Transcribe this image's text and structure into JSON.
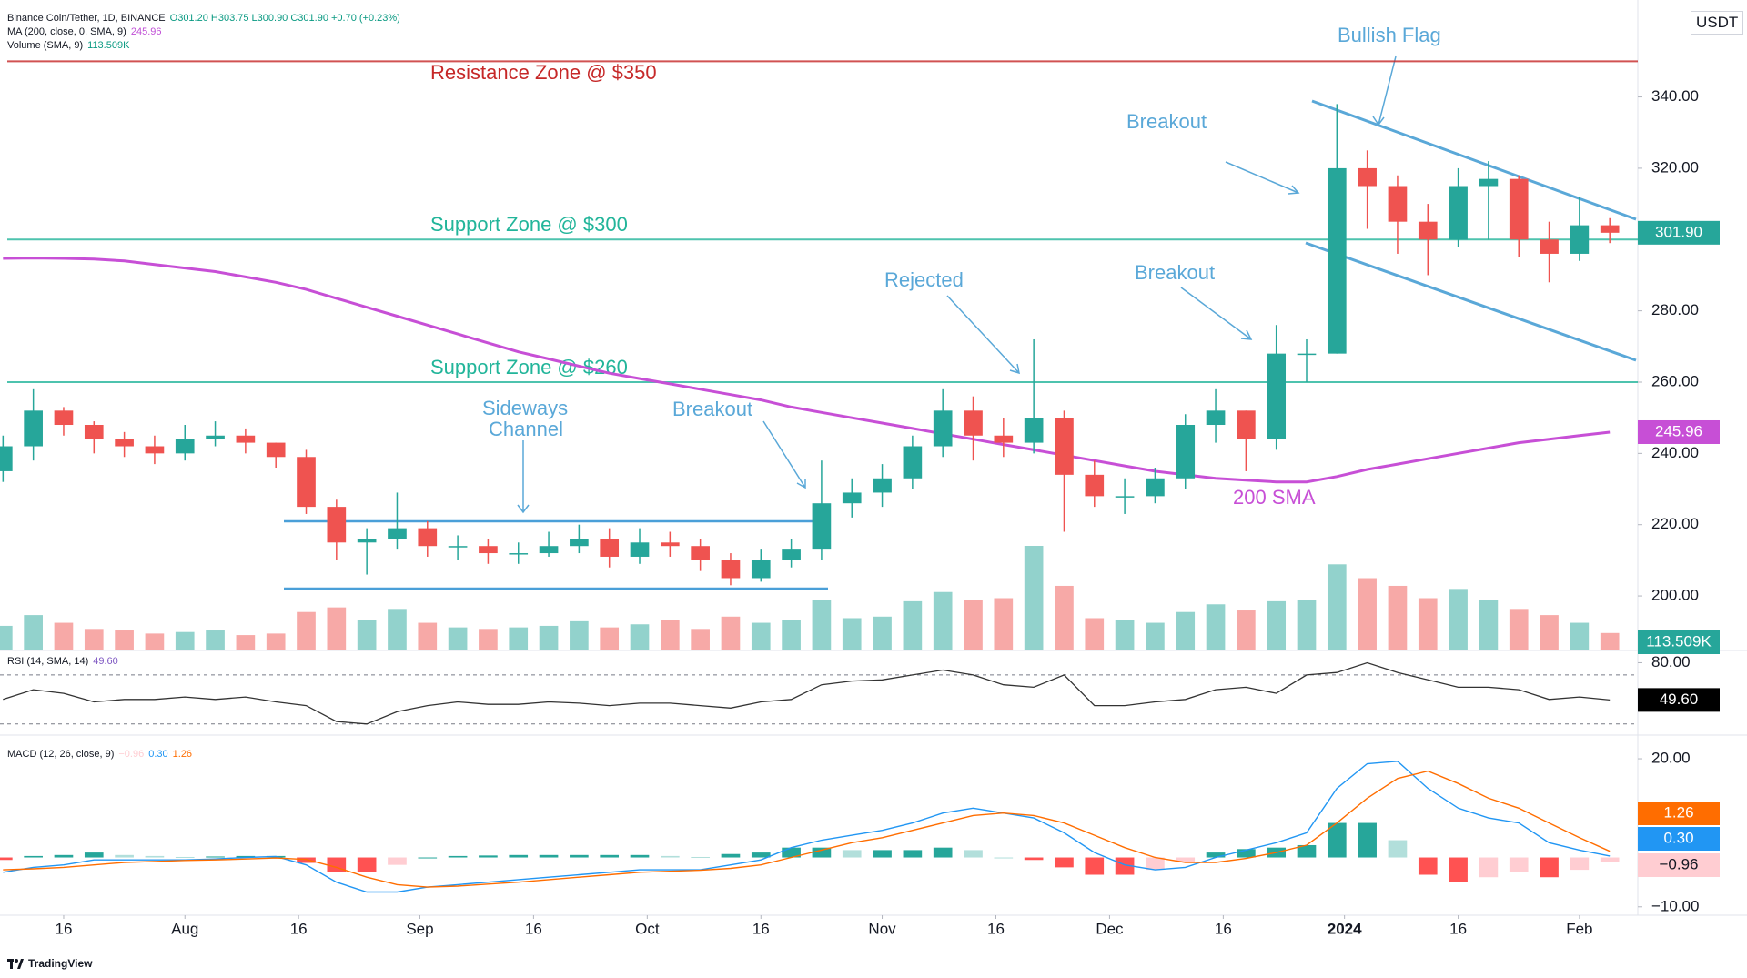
{
  "header": {
    "symbol_line": "Binance Coin/Tether, 1D, BINANCE",
    "ohlc": "O301.20 H303.75 L300.90 C301.90 +0.70 (+0.23%)",
    "ma_line": "MA (200, close, 0, SMA, 9)",
    "volume_line": "Volume (SMA, 9)",
    "currency": "USDT"
  },
  "chart_data": [
    {
      "type": "candlestick",
      "x": [
        0,
        4,
        8,
        12,
        16,
        20,
        24,
        28,
        32,
        36,
        40,
        44,
        48,
        52,
        56,
        60,
        64,
        68,
        72,
        76,
        80,
        84,
        88,
        92,
        96,
        100,
        104,
        108,
        112,
        116,
        120,
        124,
        128,
        132,
        136,
        140,
        144,
        148,
        152,
        156,
        160,
        164,
        168,
        172,
        176,
        180,
        184,
        188,
        192,
        196,
        200,
        204,
        208,
        212
      ],
      "open": [
        235,
        242,
        252,
        248,
        244,
        242,
        240,
        244,
        245,
        243,
        239,
        225,
        215,
        216,
        219,
        214,
        214,
        212,
        212,
        214,
        216,
        211,
        215,
        214,
        210,
        205,
        210,
        213,
        226,
        229,
        233,
        242,
        252,
        245,
        243,
        250,
        234,
        228,
        228,
        233,
        248,
        252,
        244,
        268,
        268,
        320,
        315,
        305,
        300,
        315,
        317,
        300,
        296,
        304
      ],
      "high": [
        245,
        258,
        253,
        249,
        246,
        245,
        248,
        249,
        247,
        243,
        241,
        227,
        219,
        229,
        221,
        217,
        216,
        215,
        218,
        220,
        219,
        219,
        218,
        216,
        212,
        213,
        216,
        238,
        233,
        237,
        245,
        258,
        256,
        250,
        272,
        252,
        238,
        233,
        236,
        251,
        258,
        252,
        276,
        272,
        338,
        325,
        318,
        310,
        320,
        322,
        318,
        305,
        312,
        306
      ],
      "low": [
        232,
        238,
        245,
        240,
        239,
        237,
        238,
        242,
        240,
        236,
        223,
        210,
        206,
        213,
        211,
        210,
        209,
        209,
        211,
        212,
        208,
        209,
        211,
        207,
        203,
        204,
        208,
        210,
        222,
        225,
        230,
        239,
        238,
        239,
        240,
        218,
        225,
        223,
        226,
        230,
        243,
        235,
        241,
        260,
        268,
        303,
        296,
        290,
        298,
        300,
        295,
        288,
        294,
        299
      ],
      "close": [
        242,
        252,
        248,
        244,
        242,
        240,
        244,
        245,
        243,
        239,
        225,
        215,
        216,
        219,
        214,
        214,
        212,
        212,
        214,
        216,
        211,
        215,
        214,
        210,
        205,
        210,
        213,
        226,
        229,
        233,
        242,
        252,
        245,
        243,
        250,
        234,
        228,
        228,
        233,
        248,
        252,
        244,
        268,
        268,
        320,
        315,
        305,
        300,
        315,
        317,
        300,
        296,
        304,
        301.9
      ],
      "close_tag": "301.90",
      "up_color": "#26a69a",
      "down_color": "#ef5350",
      "ma": {
        "values": [
          294.7,
          294.8,
          294.7,
          294.5,
          294,
          293,
          292,
          291,
          289.5,
          288,
          286,
          283.5,
          281,
          278.5,
          276,
          273.5,
          271,
          268.5,
          266.5,
          264.5,
          262.5,
          261,
          259.5,
          258,
          256.5,
          255,
          253,
          251.5,
          250,
          248.5,
          247,
          245.5,
          244,
          242.5,
          241,
          239.5,
          238,
          236.5,
          235,
          234,
          233,
          232.5,
          232,
          232,
          233.5,
          235.5,
          237,
          238.5,
          240,
          241.5,
          243,
          244,
          245,
          245.96
        ],
        "color": "#c74fd6",
        "tag": "245.96"
      },
      "volume": {
        "values": [
          160000,
          230000,
          180000,
          140000,
          130000,
          110000,
          120000,
          130000,
          100000,
          110000,
          250000,
          280000,
          200000,
          270000,
          180000,
          150000,
          140000,
          150000,
          160000,
          190000,
          150000,
          170000,
          200000,
          140000,
          220000,
          180000,
          200000,
          330000,
          210000,
          220000,
          320000,
          380000,
          330000,
          340000,
          680000,
          420000,
          210000,
          200000,
          180000,
          250000,
          300000,
          260000,
          320000,
          330000,
          560000,
          470000,
          420000,
          340000,
          400000,
          330000,
          270000,
          230000,
          180000,
          113509
        ],
        "tag": "113.509K"
      },
      "levels": [
        {
          "label": "Resistance Zone @ $350",
          "value": 350,
          "color": "#c62828"
        },
        {
          "label": "Support Zone @ $300",
          "value": 300,
          "color": "#22b59a"
        },
        {
          "label": "Support Zone @ $260",
          "value": 260,
          "color": "#22b59a"
        }
      ],
      "annotations": [
        "Bullish Flag",
        "Breakout",
        "Rejected",
        "Breakout",
        "Sideways",
        "Channel",
        "Breakout",
        "200 SMA"
      ],
      "xlim": [
        -0.4,
        215.7
      ],
      "xticks": [
        {
          "value": 8,
          "label": "16"
        },
        {
          "value": 24,
          "label": "Aug"
        },
        {
          "value": 39,
          "label": "16"
        },
        {
          "value": 55,
          "label": "Sep"
        },
        {
          "value": 70,
          "label": "16"
        },
        {
          "value": 85,
          "label": "Oct"
        },
        {
          "value": 100,
          "label": "16"
        },
        {
          "value": 116,
          "label": "Nov"
        },
        {
          "value": 131,
          "label": "16"
        },
        {
          "value": 146,
          "label": "Dec"
        },
        {
          "value": 161,
          "label": "16"
        },
        {
          "value": 177,
          "label": "2024"
        },
        {
          "value": 192,
          "label": "16"
        },
        {
          "value": 208,
          "label": "Feb"
        }
      ],
      "ylim": [
        184.7,
        367.2
      ],
      "yticks": [
        {
          "value": 200,
          "label": "200.00"
        },
        {
          "value": 220,
          "label": "220.00"
        },
        {
          "value": 240,
          "label": "240.00"
        },
        {
          "value": 260,
          "label": "260.00"
        },
        {
          "value": 280,
          "label": "280.00"
        },
        {
          "value": 300,
          "label": "300.00"
        },
        {
          "value": 320,
          "label": "320.00"
        },
        {
          "value": 340,
          "label": "340.00"
        }
      ]
    },
    {
      "type": "line",
      "title": "RSI (14, SMA, 14)",
      "series": [
        {
          "values": [
            50,
            58,
            55,
            48,
            50,
            50,
            52,
            50,
            52,
            48,
            45,
            32,
            30,
            40,
            45,
            48,
            46,
            46,
            48,
            47,
            45,
            47,
            47,
            45,
            43,
            48,
            50,
            62,
            65,
            66,
            70,
            74,
            70,
            62,
            60,
            70,
            45,
            45,
            48,
            50,
            58,
            60,
            55,
            70,
            72,
            80,
            72,
            66,
            60,
            60,
            58,
            50,
            52,
            49.6
          ],
          "color": "#333333",
          "tag": "49.60"
        }
      ],
      "bands": [
        70,
        30
      ],
      "ylim": [
        20.9,
        90
      ],
      "yticks": [
        {
          "value": 80,
          "label": "80.00"
        }
      ]
    },
    {
      "type": "macd",
      "title": "MACD (12, 26, close, 9)",
      "histogram": {
        "values": [
          -0.5,
          0.3,
          0.5,
          1,
          0.5,
          0.3,
          0.1,
          0.2,
          0.3,
          0.3,
          -1.1,
          -3,
          -3,
          -1.5,
          0,
          0.3,
          0.4,
          0.5,
          0.5,
          0.5,
          0.5,
          0.5,
          0.3,
          0.1,
          0.7,
          1,
          2,
          2,
          1.5,
          1.5,
          1.5,
          2,
          1.5,
          0,
          -0.5,
          -2,
          -3.5,
          -3.5,
          -2.5,
          -1,
          1,
          1.7,
          2,
          2.5,
          7,
          7,
          3.5,
          -3.5,
          -5,
          -4,
          -3,
          -4,
          -2.5,
          -0.96
        ],
        "tag": "−0.96"
      },
      "macd": {
        "values": [
          -3,
          -2,
          -1.5,
          -0.5,
          -0.5,
          -0.5,
          -0.5,
          -0.3,
          0,
          0.2,
          -1.5,
          -5,
          -7,
          -7,
          -6,
          -5.5,
          -5,
          -4.5,
          -4,
          -3.5,
          -3,
          -2.5,
          -2.5,
          -2.5,
          -1.5,
          -0.5,
          2,
          3.5,
          4.5,
          5.5,
          7,
          9,
          10,
          9,
          8,
          5,
          1,
          -1.5,
          -2.5,
          -2,
          0,
          1.5,
          3,
          5,
          14,
          19,
          19.5,
          14,
          10,
          8,
          7,
          3,
          1.5,
          0.3
        ],
        "color": "#2196f3",
        "tag": "0.30"
      },
      "signal": {
        "values": [
          -2.5,
          -2.3,
          -2,
          -1.5,
          -1,
          -0.8,
          -0.6,
          -0.5,
          -0.3,
          -0.1,
          -0.4,
          -2,
          -4,
          -5.5,
          -6,
          -5.8,
          -5.4,
          -5,
          -4.5,
          -4,
          -3.5,
          -3,
          -2.8,
          -2.6,
          -2.2,
          -1.5,
          0,
          1.5,
          3,
          4,
          5.5,
          7,
          8.5,
          9,
          8.5,
          7,
          4.5,
          2,
          0,
          -1,
          -1,
          -0.2,
          1,
          2.5,
          7,
          12,
          16,
          17.5,
          15,
          12,
          10,
          7,
          4,
          1.26
        ],
        "color": "#ff6d00",
        "tag": "1.26"
      },
      "ylim": [
        -11.7,
        24.8
      ],
      "yticks": [
        {
          "value": 20,
          "label": "20.00"
        },
        {
          "value": -10,
          "label": "−10.00"
        }
      ]
    }
  ],
  "footer": {
    "brand": "TradingView"
  }
}
